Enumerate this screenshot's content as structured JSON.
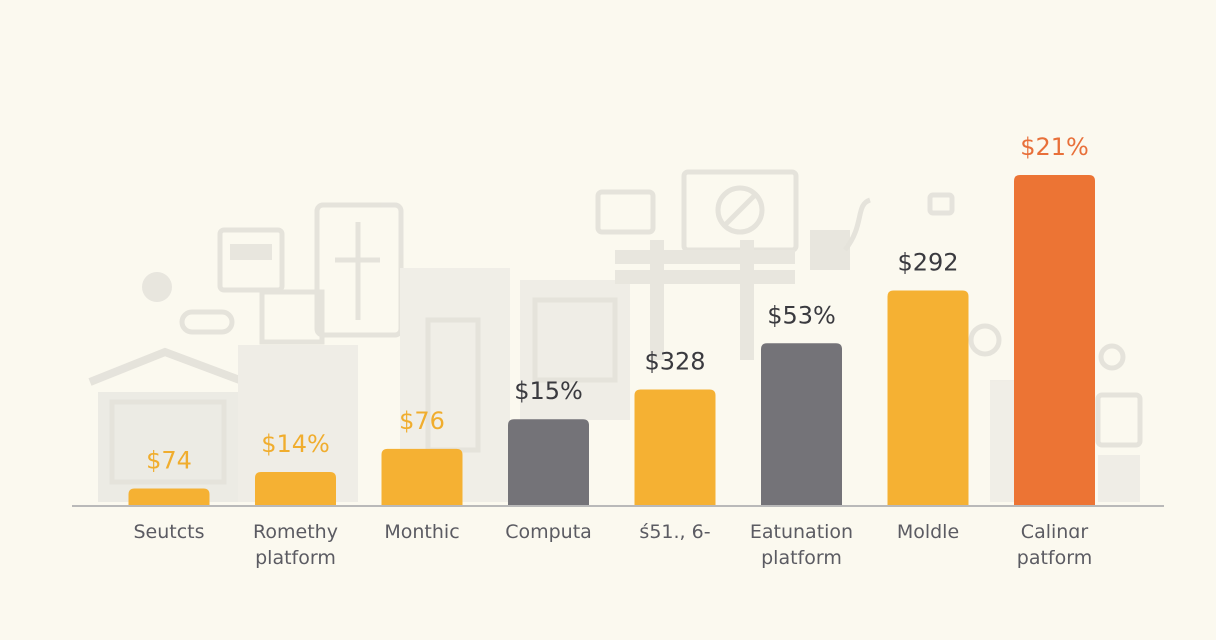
{
  "chart_data": {
    "type": "bar",
    "title": "",
    "xlabel": "",
    "ylabel": "",
    "ylim": [
      0,
      100
    ],
    "categories": [
      [
        "Seutcts"
      ],
      [
        "Romethy",
        "platform"
      ],
      [
        "Monthic"
      ],
      [
        "Computa"
      ],
      [
        "ś51., 6-"
      ],
      [
        "Eatunation",
        "platform"
      ],
      [
        "Moldle"
      ],
      [
        "Calinɑr",
        "patform"
      ]
    ],
    "values": [
      5,
      10,
      17,
      26,
      35,
      49,
      65,
      100
    ],
    "data_labels": [
      "$74",
      "$14%",
      "$76",
      "$15%",
      "$328",
      "$53%",
      "$292",
      "$21%"
    ],
    "bar_colors": [
      "#f5b133",
      "#f5b133",
      "#f5b133",
      "#747378",
      "#f5b133",
      "#747378",
      "#f5b133",
      "#ec7434"
    ],
    "label_colors": [
      "#f0ad2e",
      "#f0ad2e",
      "#f0ad2e",
      "#3a3a3f",
      "#3a3a3f",
      "#3a3a3f",
      "#3a3a3f",
      "#e8703a"
    ],
    "grid": false,
    "legend": "none",
    "background_color": "#fbf9ef",
    "axis_color": "#b9b9b9"
  }
}
